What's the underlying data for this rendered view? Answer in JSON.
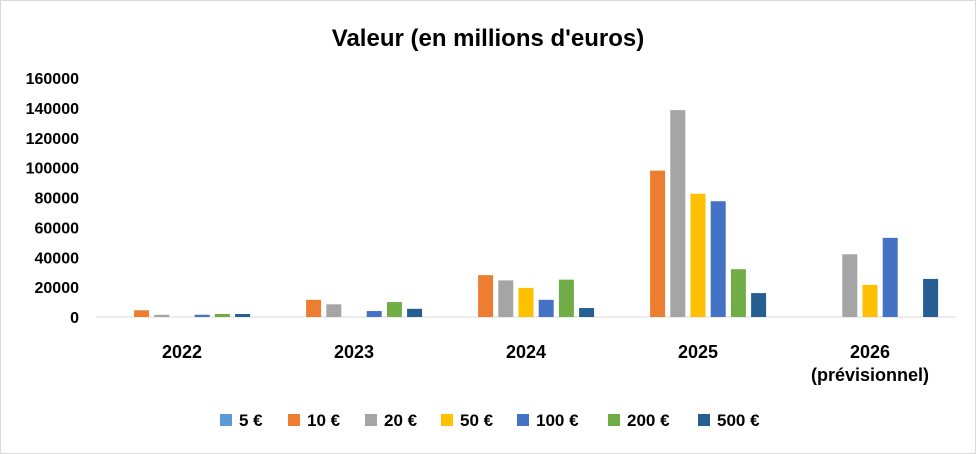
{
  "chart_data": {
    "type": "bar",
    "title": "Valeur (en millions d'euros)",
    "xlabel": "",
    "ylabel": "",
    "categories": [
      "2022",
      "2023",
      "2024",
      "2025",
      "2026\n(prévisionnel)"
    ],
    "ylim": [
      0,
      160000
    ],
    "yticks": [
      "0",
      "20000",
      "40000",
      "60000",
      "80000",
      "100000",
      "120000",
      "140000",
      "160000"
    ],
    "grid": false,
    "legend_position": "bottom",
    "series": [
      {
        "name": "5 €",
        "color": "#5B9BD5",
        "values": [
          0,
          0,
          0,
          0,
          0
        ]
      },
      {
        "name": "10 €",
        "color": "#ED7D31",
        "values": [
          4500,
          11500,
          28000,
          98000,
          0
        ]
      },
      {
        "name": "20 €",
        "color": "#A5A5A5",
        "values": [
          1500,
          8500,
          24500,
          138500,
          42000
        ]
      },
      {
        "name": "50 €",
        "color": "#FFC000",
        "values": [
          0,
          0,
          19500,
          82500,
          21500
        ]
      },
      {
        "name": "100 €",
        "color": "#4472C4",
        "values": [
          1500,
          4000,
          11500,
          77500,
          53000
        ]
      },
      {
        "name": "200 €",
        "color": "#70AD47",
        "values": [
          2000,
          10000,
          25000,
          32000,
          0
        ]
      },
      {
        "name": "500 €",
        "color": "#255E91",
        "values": [
          2000,
          5500,
          6000,
          16000,
          25500
        ]
      }
    ]
  }
}
